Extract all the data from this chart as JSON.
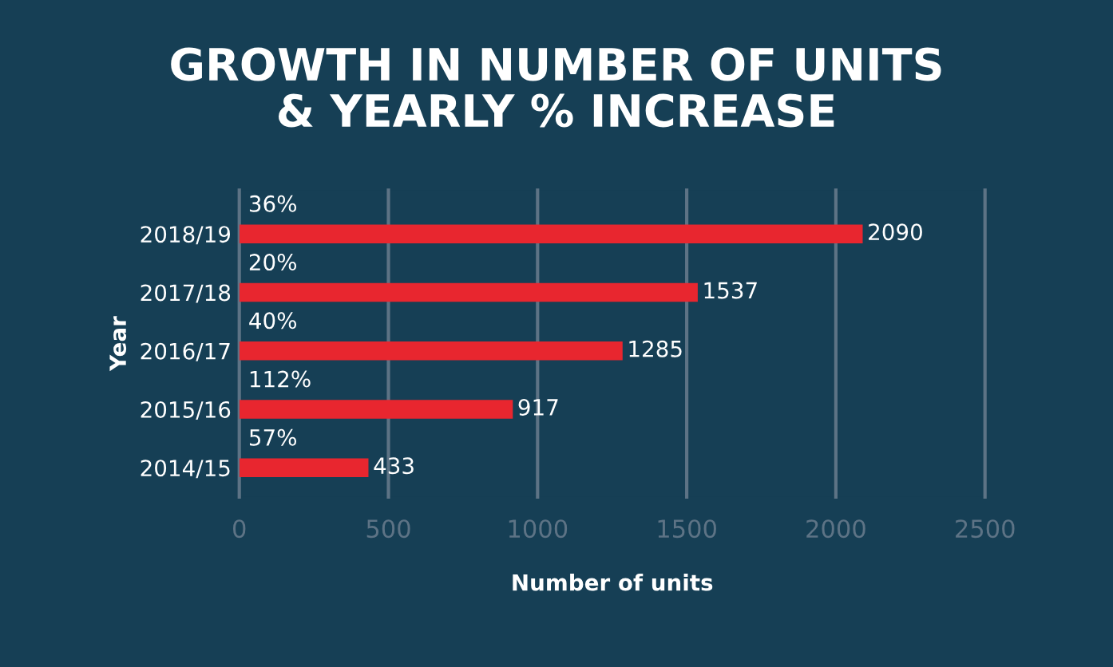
{
  "chart_data": {
    "type": "bar",
    "orientation": "horizontal",
    "title": "GROWTH IN NUMBER OF UNITS\n& YEARLY % INCREASE",
    "xlabel": "Number of units",
    "ylabel": "Year",
    "categories": [
      "2018/19",
      "2017/18",
      "2016/17",
      "2015/16",
      "2014/15"
    ],
    "values": [
      2090,
      1537,
      1285,
      917,
      433
    ],
    "color": "#e8262f",
    "xlim": [
      0,
      2500
    ],
    "xticks": [
      0,
      500,
      1000,
      1500,
      2000,
      2500
    ],
    "grid": "x",
    "data_labels": true,
    "annotations": [
      "36%",
      "20%",
      "40%",
      "112%",
      "57%"
    ]
  }
}
